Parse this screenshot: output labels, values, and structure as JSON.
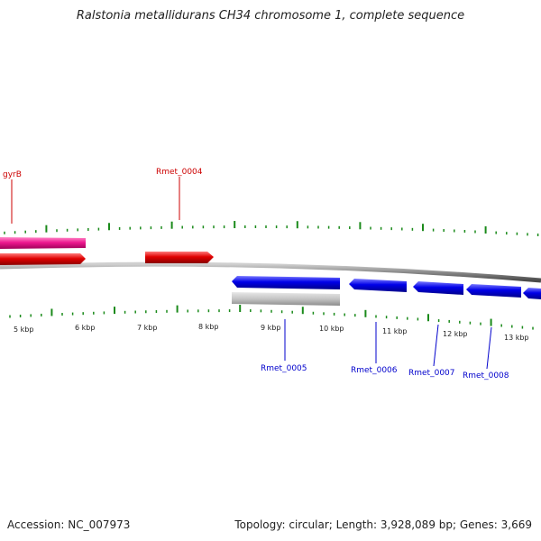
{
  "title": "Ralstonia metallidurans CH34 chromosome 1, complete sequence",
  "footer": {
    "accession": "Accession: NC_007973",
    "summary": "Topology: circular; Length: 3,928,089 bp; Genes: 3,669"
  },
  "colors": {
    "forward_gene": "#e00000",
    "forward_pink": "#ee1890",
    "reverse_gene": "#0000e8",
    "pseudo_gene": "#c0c0c0",
    "backbone": "#8a8a8a",
    "ticks": "#1a8a1a",
    "forward_label": "#cc0000",
    "reverse_label": "#0000cc"
  },
  "scale_labels": [
    "5 kbp",
    "6 kbp",
    "7 kbp",
    "8 kbp",
    "9 kbp",
    "10 kbp",
    "11 kbp",
    "12 kbp",
    "13 kbp"
  ],
  "gene_labels": {
    "forward": [
      "gyrB",
      "Rmet_0004"
    ],
    "reverse": [
      "Rmet_0005",
      "Rmet_0006",
      "Rmet_0007",
      "Rmet_0008"
    ]
  }
}
